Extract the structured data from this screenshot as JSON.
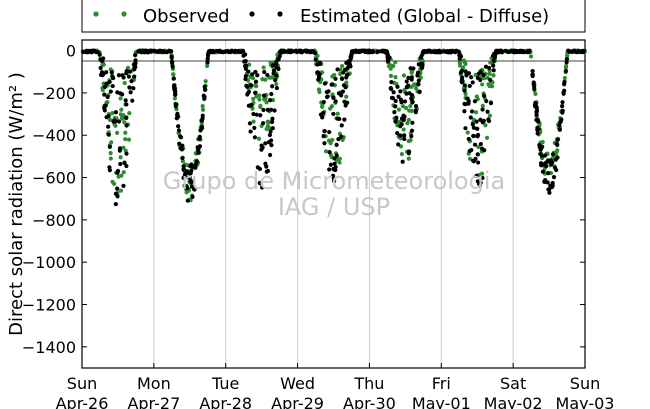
{
  "chart_data": {
    "type": "scatter",
    "title": "",
    "ylabel": "Direct solar radiation (W/m² )",
    "xlabel": "",
    "ylim": [
      -1500,
      50
    ],
    "xlim": [
      0,
      7
    ],
    "yticks": [
      0,
      -200,
      -400,
      -600,
      -800,
      -1000,
      -1200,
      -1400
    ],
    "xticks": [
      {
        "day": "Sun",
        "date": "Apr-26"
      },
      {
        "day": "Mon",
        "date": "Apr-27"
      },
      {
        "day": "Tue",
        "date": "Apr-28"
      },
      {
        "day": "Wed",
        "date": "Apr-29"
      },
      {
        "day": "Thu",
        "date": "Apr-30"
      },
      {
        "day": "Fri",
        "date": "May-01"
      },
      {
        "day": "Sat",
        "date": "May-02"
      },
      {
        "day": "Sun",
        "date": "May-03"
      }
    ],
    "grid": "vertical",
    "legend_position": "top-outside",
    "watermark": [
      "Grupo de Micrometeorologia",
      "IAG / USP"
    ],
    "series": [
      {
        "name": "Observed",
        "color": "#2e8b2e",
        "marker": "circle",
        "daily_min": [
          -700,
          -720,
          -470,
          -650,
          -550,
          -650,
          -640
        ]
      },
      {
        "name": "Estimated (Global - Diffuse)",
        "color": "#000000",
        "marker": "circle",
        "daily_min": [
          -760,
          -720,
          -660,
          -620,
          -560,
          -670,
          -690
        ]
      }
    ]
  }
}
